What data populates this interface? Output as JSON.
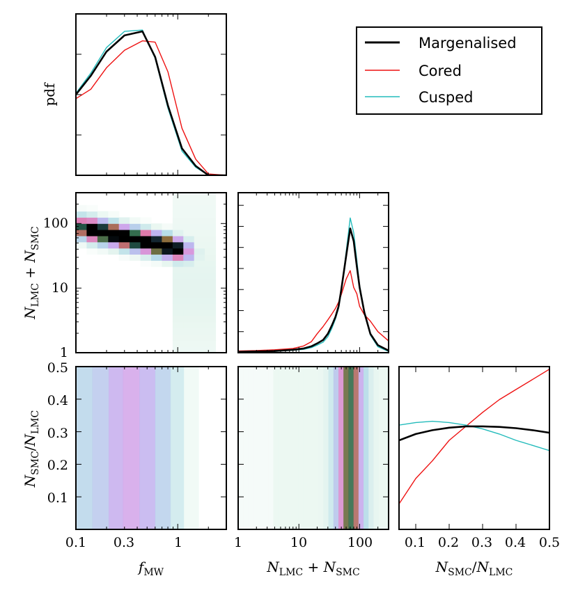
{
  "colors": {
    "margenalised": "#000000",
    "cored": "#ee1111",
    "cusped": "#22bbbb"
  },
  "legend": {
    "entries": [
      "Margenalised",
      "Cored",
      "Cusped"
    ]
  },
  "labels": {
    "pdf": "pdf",
    "f_base": "f",
    "f_sub": "MW",
    "n_base": "N",
    "lmc": "LMC",
    "smc": "SMC",
    "plus": " + ",
    "slash": "/"
  },
  "chart_data": [
    {
      "panel": "fmw-pdf",
      "type": "line",
      "x_scale": "log",
      "xlim": [
        0.1,
        3.0
      ],
      "ylabel": "pdf",
      "x": [
        0.1,
        0.14,
        0.2,
        0.3,
        0.45,
        0.6,
        0.8,
        1.1,
        1.5,
        2.0,
        3.0
      ],
      "series": [
        {
          "name": "Margenalised",
          "values": [
            0.6,
            0.74,
            0.92,
            1.04,
            1.07,
            0.88,
            0.52,
            0.2,
            0.07,
            0.0,
            0.0
          ]
        },
        {
          "name": "Cored",
          "values": [
            0.57,
            0.64,
            0.8,
            0.93,
            1.0,
            0.99,
            0.77,
            0.35,
            0.12,
            0.01,
            0.0
          ]
        },
        {
          "name": "Cusped",
          "values": [
            0.61,
            0.76,
            0.95,
            1.07,
            1.08,
            0.87,
            0.5,
            0.18,
            0.06,
            0.0,
            0.0
          ]
        }
      ]
    },
    {
      "panel": "fmw-vs-ntot",
      "type": "heatmap",
      "x_scale": "log",
      "y_scale": "log",
      "xlim": [
        0.1,
        3.0
      ],
      "ylim": [
        1,
        300
      ],
      "xlabel": "f_MW",
      "ylabel": "N_LMC + N_SMC",
      "xticks": [
        "0.1",
        "0.3",
        "1"
      ],
      "yticks": [
        "1",
        "10",
        "100"
      ]
    },
    {
      "panel": "ntot-pdf",
      "type": "line",
      "x_scale": "log",
      "xlim": [
        1,
        300
      ],
      "x": [
        1,
        2,
        4,
        8,
        12,
        16,
        20,
        25,
        30,
        35,
        40,
        45,
        50,
        60,
        70,
        80,
        90,
        100,
        120,
        150,
        200,
        300
      ],
      "series": [
        {
          "name": "Margenalised",
          "values": [
            0.02,
            0.03,
            0.04,
            0.07,
            0.1,
            0.15,
            0.22,
            0.3,
            0.45,
            0.65,
            0.85,
            1.1,
            1.5,
            2.3,
            2.95,
            2.65,
            2.05,
            1.55,
            0.95,
            0.45,
            0.18,
            0.05
          ]
        },
        {
          "name": "Cored",
          "values": [
            0.04,
            0.05,
            0.07,
            0.1,
            0.16,
            0.26,
            0.45,
            0.62,
            0.78,
            0.92,
            1.05,
            1.2,
            1.38,
            1.75,
            1.95,
            1.55,
            1.4,
            1.1,
            0.9,
            0.75,
            0.5,
            0.28
          ]
        },
        {
          "name": "Cusped",
          "values": [
            0.01,
            0.02,
            0.03,
            0.06,
            0.08,
            0.12,
            0.18,
            0.25,
            0.38,
            0.58,
            0.8,
            1.05,
            1.45,
            2.4,
            3.2,
            2.85,
            2.2,
            1.6,
            0.95,
            0.42,
            0.14,
            0.03
          ]
        }
      ]
    },
    {
      "panel": "fmw-vs-ratio",
      "type": "heatmap",
      "x_scale": "log",
      "xlim": [
        0.1,
        3.0
      ],
      "ylim": [
        0.0,
        0.5
      ],
      "xlabel": "f_MW",
      "ylabel": "N_SMC / N_LMC",
      "xticks": [
        "0.1",
        "0.3",
        "1"
      ],
      "yticks": [
        "0.1",
        "0.2",
        "0.3",
        "0.4",
        "0.5"
      ]
    },
    {
      "panel": "ntot-vs-ratio",
      "type": "heatmap",
      "x_scale": "log",
      "xlim": [
        1,
        300
      ],
      "ylim": [
        0.0,
        0.5
      ],
      "xlabel": "N_LMC + N_SMC",
      "xticks": [
        "1",
        "10",
        "100"
      ]
    },
    {
      "panel": "ratio-pdf",
      "type": "line",
      "xlim": [
        0.05,
        0.5
      ],
      "xlabel": "N_SMC / N_LMC",
      "xticks": [
        "0.1",
        "0.2",
        "0.3",
        "0.4",
        "0.5"
      ],
      "x": [
        0.05,
        0.1,
        0.15,
        0.2,
        0.25,
        0.3,
        0.35,
        0.4,
        0.45,
        0.5
      ],
      "series": [
        {
          "name": "Margenalised",
          "values": [
            0.95,
            0.975,
            0.99,
            1.0,
            1.005,
            1.005,
            1.003,
            0.998,
            0.99,
            0.98
          ]
        },
        {
          "name": "Cored",
          "values": [
            0.7,
            0.8,
            0.87,
            0.95,
            1.005,
            1.06,
            1.11,
            1.15,
            1.19,
            1.23
          ]
        },
        {
          "name": "Cusped",
          "values": [
            1.01,
            1.02,
            1.025,
            1.02,
            1.01,
            0.995,
            0.975,
            0.95,
            0.93,
            0.91
          ]
        }
      ]
    }
  ]
}
